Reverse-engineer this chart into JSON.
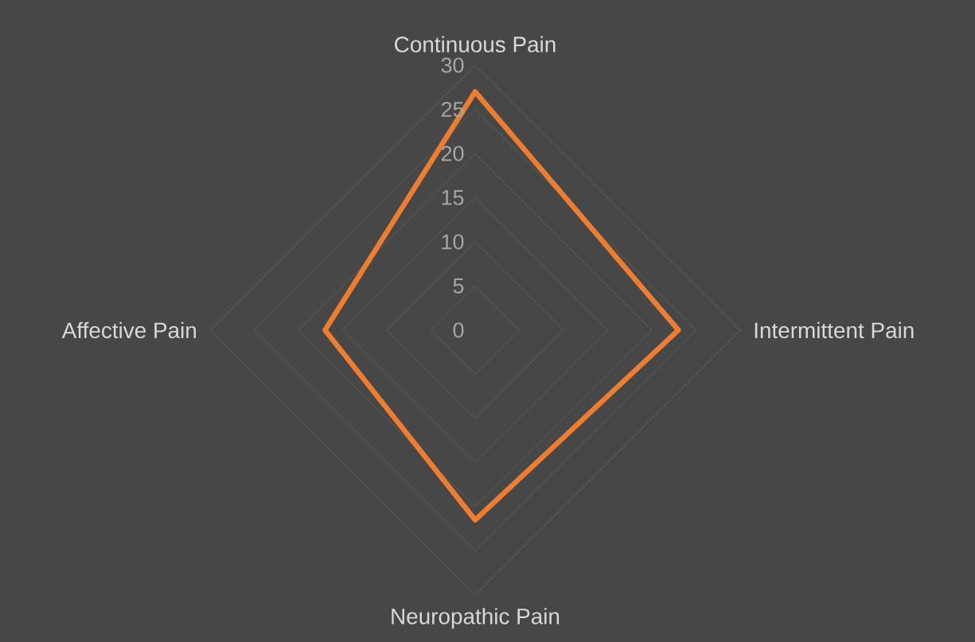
{
  "chart_data": {
    "type": "radar",
    "categories": [
      "Continuous Pain",
      "Intermittent Pain",
      "Neuropathic Pain",
      "Affective Pain"
    ],
    "series": [
      {
        "color": "#ed7d31",
        "values": [
          27,
          23,
          21.5,
          17
        ]
      }
    ],
    "ylim": [
      0,
      30
    ],
    "yticks": [
      0,
      5,
      10,
      15,
      20,
      25,
      30
    ],
    "grid": true
  }
}
